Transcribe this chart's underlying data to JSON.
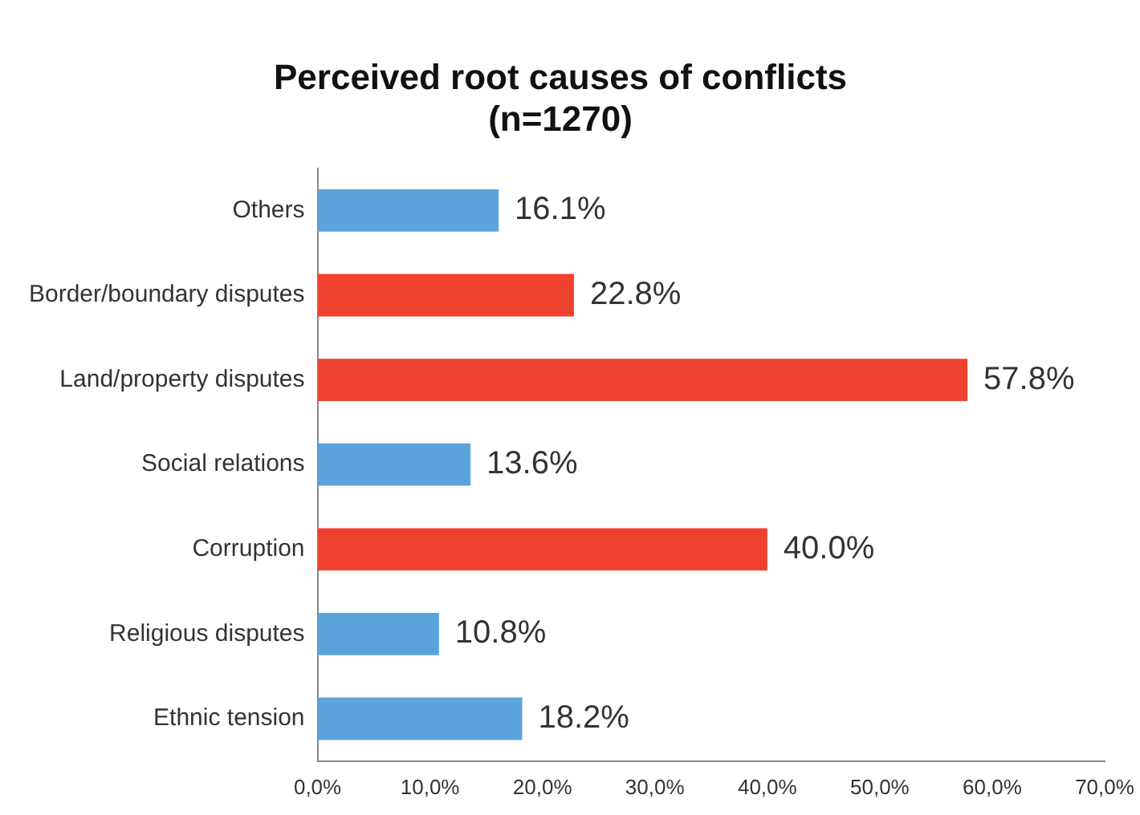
{
  "chart_data": {
    "type": "bar",
    "orientation": "horizontal",
    "title": "Perceived root causes of conflicts\n(n=1270)",
    "categories": [
      "Others",
      "Border/boundary disputes",
      "Land/property disputes",
      "Social relations",
      "Corruption",
      "Religious disputes",
      "Ethnic tension"
    ],
    "values": [
      16.1,
      22.8,
      57.8,
      13.6,
      40.0,
      10.8,
      18.2
    ],
    "colors": [
      "#5ba3db",
      "#ee4130",
      "#ee4130",
      "#5ba3db",
      "#ee4130",
      "#5ba3db",
      "#5ba3db"
    ],
    "value_labels": [
      "16.1%",
      "22.8%",
      "57.8%",
      "13.6%",
      "40.0%",
      "10.8%",
      "18.2%"
    ],
    "xlim": [
      0,
      70
    ],
    "xticks": [
      {
        "value": 0,
        "label": "0,0%"
      },
      {
        "value": 10,
        "label": "10,0%"
      },
      {
        "value": 20,
        "label": "20,0%"
      },
      {
        "value": 30,
        "label": "30,0%"
      },
      {
        "value": 40,
        "label": "40,0%"
      },
      {
        "value": 50,
        "label": "50,0%"
      },
      {
        "value": 60,
        "label": "60,0%"
      },
      {
        "value": 70,
        "label": "70,0%"
      }
    ],
    "grid": false,
    "legend": false
  }
}
